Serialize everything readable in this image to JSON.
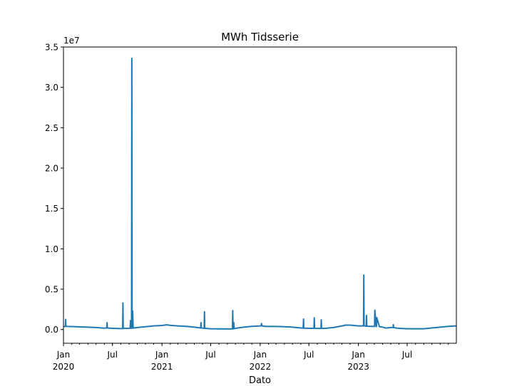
{
  "chart_data": {
    "type": "line",
    "title": "MWh Tidsserie",
    "xlabel": "Dato",
    "ylabel": "",
    "y_scale_note": "1e7",
    "xlim": [
      "2020-01-01",
      "2023-12-31"
    ],
    "ylim": [
      -1700000,
      35000000
    ],
    "grid": false,
    "legend": "none",
    "line_color": "#1f77b4",
    "y_ticks": [
      {
        "value": 0,
        "label": "0.0"
      },
      {
        "value": 5000000,
        "label": "0.5"
      },
      {
        "value": 10000000,
        "label": "1.0"
      },
      {
        "value": 15000000,
        "label": "1.5"
      },
      {
        "value": 20000000,
        "label": "2.0"
      },
      {
        "value": 25000000,
        "label": "2.5"
      },
      {
        "value": 30000000,
        "label": "3.0"
      },
      {
        "value": 35000000,
        "label": "3.5"
      }
    ],
    "x_major_ticks": [
      {
        "date": "2020-01-01",
        "label": "Jan",
        "sublabel": "2020"
      },
      {
        "date": "2020-07-01",
        "label": "Jul",
        "sublabel": ""
      },
      {
        "date": "2021-01-01",
        "label": "Jan",
        "sublabel": "2021"
      },
      {
        "date": "2021-07-01",
        "label": "Jul",
        "sublabel": ""
      },
      {
        "date": "2022-01-01",
        "label": "Jan",
        "sublabel": "2022"
      },
      {
        "date": "2022-07-01",
        "label": "Jul",
        "sublabel": ""
      },
      {
        "date": "2023-01-01",
        "label": "Jan",
        "sublabel": "2023"
      },
      {
        "date": "2023-07-01",
        "label": "Jul",
        "sublabel": ""
      }
    ],
    "series": [
      {
        "x": [
          "2020-01-01",
          "2020-01-05",
          "2020-01-08",
          "2020-01-09",
          "2020-01-10",
          "2020-01-15",
          "2020-02-01",
          "2020-03-01",
          "2020-04-01",
          "2020-05-01",
          "2020-06-01",
          "2020-06-10",
          "2020-06-11",
          "2020-06-12",
          "2020-06-20",
          "2020-07-01",
          "2020-08-01",
          "2020-08-08",
          "2020-08-09",
          "2020-08-10",
          "2020-08-15",
          "2020-08-20",
          "2020-09-01",
          "2020-09-05",
          "2020-09-06",
          "2020-09-07",
          "2020-09-10",
          "2020-09-11",
          "2020-09-12",
          "2020-09-13",
          "2020-09-14",
          "2020-09-16",
          "2020-09-17",
          "2020-09-18",
          "2020-09-20",
          "2020-10-01",
          "2020-11-01",
          "2020-12-01",
          "2021-01-01",
          "2021-01-10",
          "2021-01-20",
          "2021-02-01",
          "2021-03-01",
          "2021-04-01",
          "2021-05-01",
          "2021-05-25",
          "2021-05-26",
          "2021-05-27",
          "2021-06-01",
          "2021-06-07",
          "2021-06-08",
          "2021-06-09",
          "2021-06-15",
          "2021-07-01",
          "2021-08-01",
          "2021-09-01",
          "2021-09-20",
          "2021-09-21",
          "2021-09-22",
          "2021-09-24",
          "2021-09-25",
          "2021-09-26",
          "2021-10-01",
          "2021-11-01",
          "2021-12-01",
          "2022-01-01",
          "2022-01-05",
          "2022-01-06",
          "2022-01-07",
          "2022-01-20",
          "2022-02-01",
          "2022-03-01",
          "2022-04-01",
          "2022-05-01",
          "2022-06-01",
          "2022-06-10",
          "2022-06-11",
          "2022-06-12",
          "2022-07-01",
          "2022-07-20",
          "2022-07-21",
          "2022-07-22",
          "2022-08-01",
          "2022-08-15",
          "2022-08-16",
          "2022-08-17",
          "2022-09-01",
          "2022-10-01",
          "2022-11-01",
          "2022-11-10",
          "2022-11-11",
          "2022-12-01",
          "2023-01-01",
          "2023-01-20",
          "2023-01-21",
          "2023-01-22",
          "2023-01-23",
          "2023-01-24",
          "2023-01-30",
          "2023-01-31",
          "2023-02-01",
          "2023-02-15",
          "2023-03-01",
          "2023-03-02",
          "2023-03-03",
          "2023-03-08",
          "2023-03-09",
          "2023-03-10",
          "2023-03-20",
          "2023-04-01",
          "2023-04-10",
          "2023-04-20",
          "2023-05-01",
          "2023-05-10",
          "2023-05-11",
          "2023-05-12",
          "2023-05-20",
          "2023-06-01",
          "2023-07-01",
          "2023-08-01",
          "2023-09-01",
          "2023-10-01",
          "2023-11-01",
          "2023-12-01",
          "2023-12-31"
        ],
        "y": [
          350000,
          380000,
          400000,
          1250000,
          400000,
          380000,
          370000,
          330000,
          300000,
          250000,
          180000,
          200000,
          850000,
          200000,
          170000,
          150000,
          120000,
          130000,
          3300000,
          130000,
          140000,
          140000,
          150000,
          160000,
          1100000,
          160000,
          170000,
          33600000,
          170000,
          180000,
          2300000,
          190000,
          190000,
          190000,
          200000,
          250000,
          350000,
          450000,
          500000,
          550000,
          580000,
          520000,
          450000,
          400000,
          300000,
          200000,
          850000,
          200000,
          180000,
          150000,
          2200000,
          150000,
          140000,
          100000,
          90000,
          80000,
          90000,
          2350000,
          90000,
          95000,
          850000,
          95000,
          150000,
          300000,
          400000,
          450000,
          500000,
          750000,
          450000,
          400000,
          380000,
          380000,
          350000,
          300000,
          200000,
          180000,
          1300000,
          180000,
          150000,
          150000,
          1450000,
          150000,
          140000,
          140000,
          1200000,
          140000,
          150000,
          250000,
          450000,
          500000,
          550000,
          550000,
          450000,
          450000,
          6750000,
          450000,
          450000,
          450000,
          420000,
          1750000,
          420000,
          400000,
          380000,
          380000,
          2400000,
          380000,
          360000,
          1500000,
          360000,
          300000,
          200000,
          200000,
          250000,
          250000,
          600000,
          250000,
          200000,
          150000,
          100000,
          100000,
          100000,
          200000,
          300000,
          400000,
          450000
        ]
      }
    ]
  }
}
